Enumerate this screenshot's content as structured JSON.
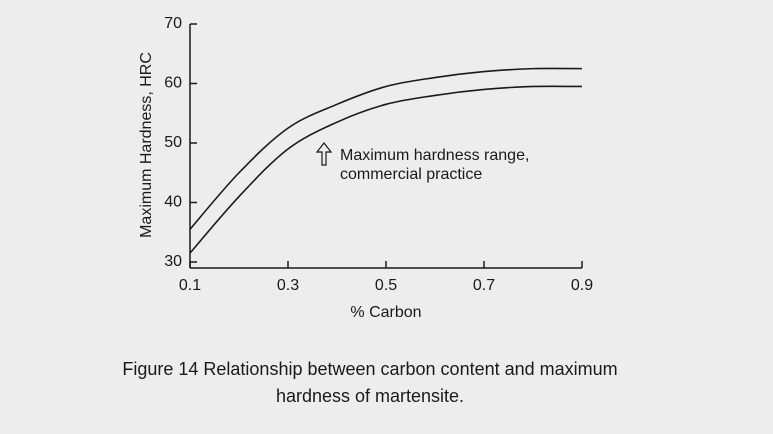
{
  "chart_data": {
    "type": "line",
    "x": [
      0.1,
      0.2,
      0.3,
      0.4,
      0.5,
      0.6,
      0.7,
      0.8,
      0.9
    ],
    "series": [
      {
        "color": "#1a1a1a",
        "values": [
          35.5,
          45,
          52.5,
          56.5,
          59.5,
          61,
          62,
          62.5,
          62.5
        ]
      },
      {
        "color": "#1a1a1a",
        "values": [
          31.5,
          41,
          49,
          53.5,
          56.5,
          58,
          59,
          59.5,
          59.5
        ]
      }
    ],
    "xlim": [
      0.1,
      0.9
    ],
    "xticks": [
      0.1,
      0.3,
      0.5,
      0.7,
      0.9
    ],
    "ylim": [
      30,
      70
    ],
    "yticks": [
      30,
      40,
      50,
      60,
      70
    ],
    "x_label": "% Carbon",
    "y_label": "Maximum Hardness, HRC",
    "annotation": [
      "Maximum hardness range,",
      "commercial practice"
    ],
    "caption": [
      "Figure 14  Relationship between carbon content and maximum",
      "hardness of martensite."
    ]
  }
}
